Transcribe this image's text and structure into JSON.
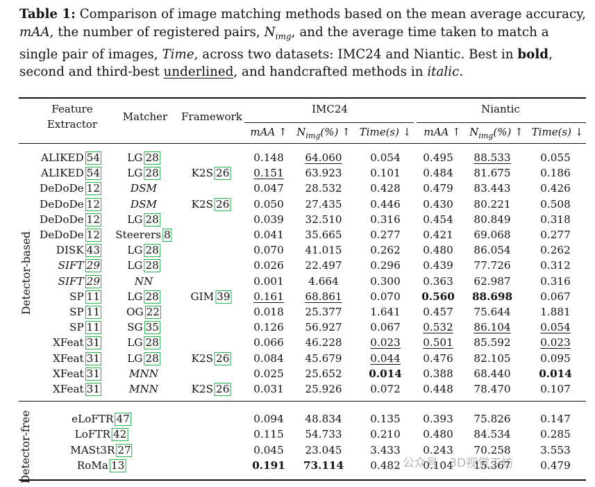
{
  "caption": {
    "label": "Table 1:",
    "t1": " Comparison of image matching methods based on the mean average accuracy,",
    "mAA": "mAA",
    "t2": ", the number of registered pairs, ",
    "Nimg": "N",
    "Nimg_sub": "img",
    "t3": ", and the average time taken to match a single pair of images, ",
    "Time": "Time",
    "t4": ", across two datasets: IMC24 and Niantic. Best in ",
    "bold": "bold",
    "t5": ", second and third-best ",
    "underlined": "underlined",
    "t6": ", and handcrafted methods in ",
    "italic": "italic",
    "t7": "."
  },
  "headers": {
    "feature_l1": "Feature",
    "feature_l2": "Extractor",
    "matcher": "Matcher",
    "framework": "Framework",
    "imc24": "IMC24",
    "niantic": "Niantic",
    "m1": "mAA ↑",
    "m2a": "N",
    "m2sub": "img",
    "m2b": "(%) ↑",
    "m3": "Time(s) ↓",
    "m4": "mAA ↑",
    "m5a": "N",
    "m5sub": "img",
    "m5b": "(%) ↑",
    "m6": "Time(s) ↓"
  },
  "groups": {
    "detector_based": "Detector-based",
    "detector_free": "Detector-free"
  },
  "rows": [
    {
      "fe": "ALIKED",
      "fe_ref": "54",
      "m": "LG",
      "m_ref": "28",
      "fw": "",
      "fw_ref": "",
      "v": [
        "0.148",
        "64.060",
        "0.054",
        "0.495",
        "88.533",
        "0.055"
      ]
    },
    {
      "fe": "ALIKED",
      "fe_ref": "54",
      "m": "LG",
      "m_ref": "28",
      "fw": "K2S",
      "fw_ref": "26",
      "v": [
        "0.151",
        "63.923",
        "0.101",
        "0.484",
        "81.675",
        "0.186"
      ]
    },
    {
      "fe": "DeDoDe",
      "fe_ref": "12",
      "m": "DSM",
      "m_ref": "",
      "fw": "",
      "fw_ref": "",
      "v": [
        "0.047",
        "28.532",
        "0.428",
        "0.479",
        "83.443",
        "0.426"
      ]
    },
    {
      "fe": "DeDoDe",
      "fe_ref": "12",
      "m": "DSM",
      "m_ref": "",
      "fw": "K2S",
      "fw_ref": "26",
      "v": [
        "0.050",
        "27.435",
        "0.446",
        "0.430",
        "80.221",
        "0.508"
      ]
    },
    {
      "fe": "DeDoDe",
      "fe_ref": "12",
      "m": "LG",
      "m_ref": "28",
      "fw": "",
      "fw_ref": "",
      "v": [
        "0.039",
        "32.510",
        "0.316",
        "0.454",
        "80.849",
        "0.318"
      ]
    },
    {
      "fe": "DeDoDe",
      "fe_ref": "12",
      "m": "Steerers",
      "m_ref": "8",
      "fw": "",
      "fw_ref": "",
      "v": [
        "0.041",
        "35.665",
        "0.277",
        "0.421",
        "69.068",
        "0.277"
      ]
    },
    {
      "fe": "DISK",
      "fe_ref": "43",
      "m": "LG",
      "m_ref": "28",
      "fw": "",
      "fw_ref": "",
      "v": [
        "0.070",
        "41.015",
        "0.262",
        "0.480",
        "86.054",
        "0.262"
      ]
    },
    {
      "fe": "SIFT",
      "fe_ref": "29",
      "m": "LG",
      "m_ref": "28",
      "fw": "",
      "fw_ref": "",
      "v": [
        "0.026",
        "22.497",
        "0.296",
        "0.439",
        "77.726",
        "0.312"
      ]
    },
    {
      "fe": "SIFT",
      "fe_ref": "29",
      "m": "NN",
      "m_ref": "",
      "fw": "",
      "fw_ref": "",
      "v": [
        "0.001",
        "4.664",
        "0.300",
        "0.363",
        "62.987",
        "0.316"
      ]
    },
    {
      "fe": "SP",
      "fe_ref": "11",
      "m": "LG",
      "m_ref": "28",
      "fw": "GIM",
      "fw_ref": "39",
      "v": [
        "0.161",
        "68.861",
        "0.070",
        "0.560",
        "88.698",
        "0.067"
      ]
    },
    {
      "fe": "SP",
      "fe_ref": "11",
      "m": "OG",
      "m_ref": "22",
      "fw": "",
      "fw_ref": "",
      "v": [
        "0.018",
        "25.377",
        "1.641",
        "0.457",
        "75.644",
        "1.881"
      ]
    },
    {
      "fe": "SP",
      "fe_ref": "11",
      "m": "SG",
      "m_ref": "35",
      "fw": "",
      "fw_ref": "",
      "v": [
        "0.126",
        "56.927",
        "0.067",
        "0.532",
        "86.104",
        "0.054"
      ]
    },
    {
      "fe": "XFeat",
      "fe_ref": "31",
      "m": "LG",
      "m_ref": "28",
      "fw": "",
      "fw_ref": "",
      "v": [
        "0.066",
        "46.228",
        "0.023",
        "0.501",
        "85.592",
        "0.023"
      ]
    },
    {
      "fe": "XFeat",
      "fe_ref": "31",
      "m": "LG",
      "m_ref": "28",
      "fw": "K2S",
      "fw_ref": "26",
      "v": [
        "0.084",
        "45.679",
        "0.044",
        "0.476",
        "82.105",
        "0.095"
      ]
    },
    {
      "fe": "XFeat",
      "fe_ref": "31",
      "m": "MNN",
      "m_ref": "",
      "fw": "",
      "fw_ref": "",
      "v": [
        "0.025",
        "25.652",
        "0.014",
        "0.388",
        "68.440",
        "0.014"
      ]
    },
    {
      "fe": "XFeat",
      "fe_ref": "31",
      "m": "MNN",
      "m_ref": "",
      "fw": "K2S",
      "fw_ref": "26",
      "v": [
        "0.031",
        "25.926",
        "0.072",
        "0.448",
        "78.470",
        "0.107"
      ]
    }
  ],
  "free_rows": [
    {
      "fe": "eLoFTR",
      "fe_ref": "47",
      "v": [
        "0.094",
        "48.834",
        "0.135",
        "0.393",
        "75.826",
        "0.147"
      ]
    },
    {
      "fe": "LoFTR",
      "fe_ref": "42",
      "v": [
        "0.115",
        "54.733",
        "0.210",
        "0.480",
        "84.534",
        "0.285"
      ]
    },
    {
      "fe": "MASt3R",
      "fe_ref": "27",
      "v": [
        "0.045",
        "23.045",
        "3.433",
        "0.243",
        "70.258",
        "3.553"
      ]
    },
    {
      "fe": "RoMa",
      "fe_ref": "13",
      "v": [
        "0.191",
        "73.114",
        "0.482",
        "0.104",
        "15.367",
        "0.479"
      ]
    }
  ],
  "watermark": "公众号 · 3D视觉工坊"
}
